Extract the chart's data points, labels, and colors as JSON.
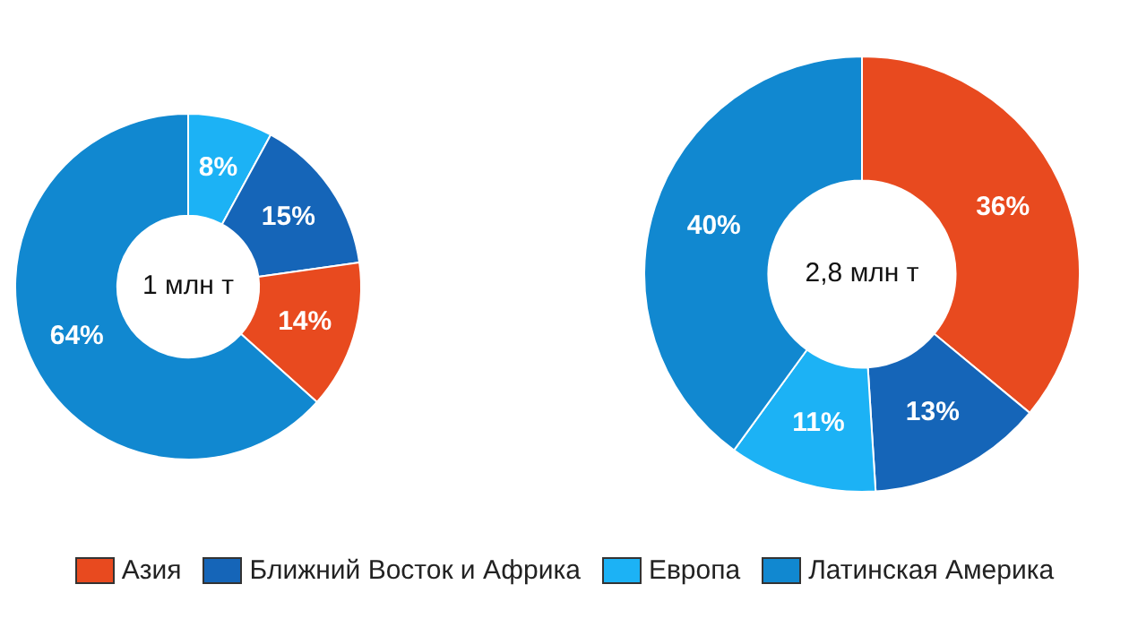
{
  "chart_data": [
    {
      "type": "donut",
      "categories": [
        null,
        null,
        null,
        null
      ],
      "values": [
        8,
        15,
        14,
        64
      ],
      "colors": [
        "#1cb2f5",
        "#1565b8",
        "#e84a1f",
        "#1188d0"
      ],
      "value_labels": [
        "8%",
        "15%",
        "14%",
        "64%"
      ],
      "annotations": [
        "1 млн т"
      ],
      "legend": false
    },
    {
      "type": "donut",
      "categories": [
        "Азия",
        "Ближний Восток и Африка",
        "Европа",
        "Латинская Америка"
      ],
      "values": [
        36,
        13,
        11,
        40
      ],
      "colors": [
        "#e84a1f",
        "#1565b8",
        "#1cb2f5",
        "#1188d0"
      ],
      "value_labels": [
        "36%",
        "13%",
        "11%",
        "40%"
      ],
      "annotations": [
        "2,8 млн т"
      ],
      "legend": "bottom"
    }
  ]
}
